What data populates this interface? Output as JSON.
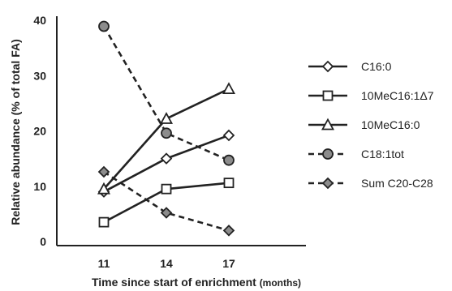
{
  "chart_data": {
    "type": "line",
    "xlabel": "Time since start of enrichment",
    "xlabel_unit": "(months)",
    "ylabel": "Relative abundance (% of total FA)",
    "x": [
      11,
      14,
      17
    ],
    "x_tick_labels": [
      "11",
      "14",
      "17"
    ],
    "ylim": [
      0,
      40
    ],
    "y_tick_labels": [
      "0",
      "10",
      "20",
      "30",
      "40"
    ],
    "grid": false,
    "legend_position": "right",
    "series": [
      {
        "name": "C16:0",
        "values": [
          9.0,
          15.0,
          19.2
        ],
        "marker": "diamond",
        "marker_fill": "#ffffff",
        "dashed": false
      },
      {
        "name": "10MeC16:1Δ7",
        "values": [
          3.5,
          9.5,
          10.6
        ],
        "marker": "square",
        "marker_fill": "#ffffff",
        "dashed": false
      },
      {
        "name": "10MeC16:0",
        "values": [
          9.5,
          22.2,
          27.6
        ],
        "marker": "triangle",
        "marker_fill": "#ffffff",
        "dashed": false
      },
      {
        "name": "C18:1tot",
        "values": [
          38.9,
          19.6,
          14.7
        ],
        "marker": "circle",
        "marker_fill": "#8c8c8c",
        "dashed": true
      },
      {
        "name": "Sum C20-C28",
        "values": [
          12.6,
          5.2,
          2.0
        ],
        "marker": "diamond",
        "marker_fill": "#8c8c8c",
        "dashed": true
      }
    ]
  }
}
